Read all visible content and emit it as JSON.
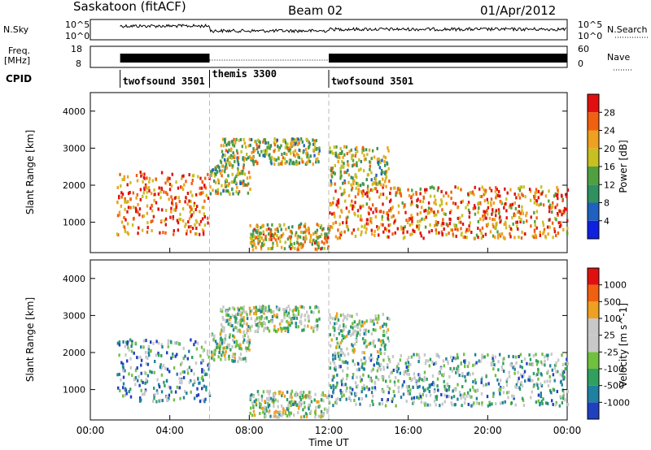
{
  "header": {
    "station": "Saskatoon (fitACF)",
    "beam": "Beam 02",
    "date": "01/Apr/2012"
  },
  "noise_panel": {
    "left_label": "N.Sky",
    "right_label": "N.Search",
    "ticks_left": [
      "10^5",
      "10^0"
    ],
    "ticks_right": [
      "10^5",
      "10^0"
    ]
  },
  "freq_panel": {
    "left_label_1": "Freq.",
    "left_label_2": "[MHz]",
    "right_label": "Nave",
    "ticks_left": [
      "18",
      "8"
    ],
    "ticks_right": [
      "60",
      "0"
    ]
  },
  "cpid": {
    "label": "CPID",
    "segments": [
      {
        "name": "twofsound 3501",
        "start_h": 1.5,
        "end_h": 6.0
      },
      {
        "name": "themis 3300",
        "start_h": 6.0,
        "end_h": 12.0
      },
      {
        "name": "twofsound 3501",
        "start_h": 12.0,
        "end_h": 24.0
      }
    ]
  },
  "chart_data": [
    {
      "type": "heatmap",
      "title": "",
      "xlabel": "Time UT",
      "ylabel": "Slant Range [km]",
      "xlim": [
        0,
        24
      ],
      "ylim": [
        180,
        4500
      ],
      "yticks": [
        "1000",
        "2000",
        "3000",
        "4000"
      ],
      "colorbar": {
        "label": "Power [dB]",
        "ticks": [
          "4",
          "8",
          "12",
          "16",
          "20",
          "24",
          "28"
        ],
        "range": [
          0,
          30
        ],
        "colors": [
          "#1020e0",
          "#2060c0",
          "#309060",
          "#50a040",
          "#c8c020",
          "#f0a020",
          "#f06010",
          "#e01010"
        ]
      },
      "scatter_bands": [
        {
          "t0": 1.3,
          "t1": 6.0,
          "r0": 700,
          "r1": 2400,
          "level": 0.8
        },
        {
          "t0": 6.0,
          "t1": 8.0,
          "r0": 1800,
          "r1": 2600,
          "level": 0.5
        },
        {
          "t0": 6.5,
          "t1": 11.5,
          "r0": 2600,
          "r1": 3300,
          "level": 0.5
        },
        {
          "t0": 12.0,
          "t1": 24.0,
          "r0": 600,
          "r1": 2000,
          "level": 0.75
        },
        {
          "t0": 12.0,
          "t1": 15.0,
          "r0": 2000,
          "r1": 3100,
          "level": 0.5
        },
        {
          "t0": 8.0,
          "t1": 12.0,
          "r0": 300,
          "r1": 1000,
          "level": 0.6
        }
      ]
    },
    {
      "type": "heatmap",
      "title": "",
      "xlabel": "Time UT",
      "ylabel": "Slant Range [km]",
      "xlim": [
        0,
        24
      ],
      "ylim": [
        180,
        4500
      ],
      "yticks": [
        "1000",
        "2000",
        "3000",
        "4000"
      ],
      "xticks": [
        "00:00",
        "04:00",
        "08:00",
        "12:00",
        "16:00",
        "20:00",
        "00:00"
      ],
      "colorbar": {
        "label": "Velocity [m s^-1]",
        "ticks": [
          "1000",
          "500",
          "100",
          "25",
          "-25",
          "-100",
          "-500",
          "-1000"
        ],
        "colors": [
          "#2040c0",
          "#2080a0",
          "#30a060",
          "#70c040",
          "#c8c8c8",
          "#c8c8c8",
          "#f0a020",
          "#f06010",
          "#e01010"
        ]
      },
      "scatter_bands": [
        {
          "t0": 1.3,
          "t1": 6.0,
          "r0": 700,
          "r1": 2400,
          "level": 0.3
        },
        {
          "t0": 6.0,
          "t1": 8.0,
          "r0": 1800,
          "r1": 2600,
          "level": 0.45
        },
        {
          "t0": 6.5,
          "t1": 11.5,
          "r0": 2600,
          "r1": 3300,
          "level": 0.45
        },
        {
          "t0": 12.0,
          "t1": 24.0,
          "r0": 600,
          "r1": 2000,
          "level": 0.35
        },
        {
          "t0": 12.0,
          "t1": 15.0,
          "r0": 2000,
          "r1": 3100,
          "level": 0.45
        },
        {
          "t0": 8.0,
          "t1": 12.0,
          "r0": 300,
          "r1": 1000,
          "level": 0.45
        }
      ]
    }
  ]
}
